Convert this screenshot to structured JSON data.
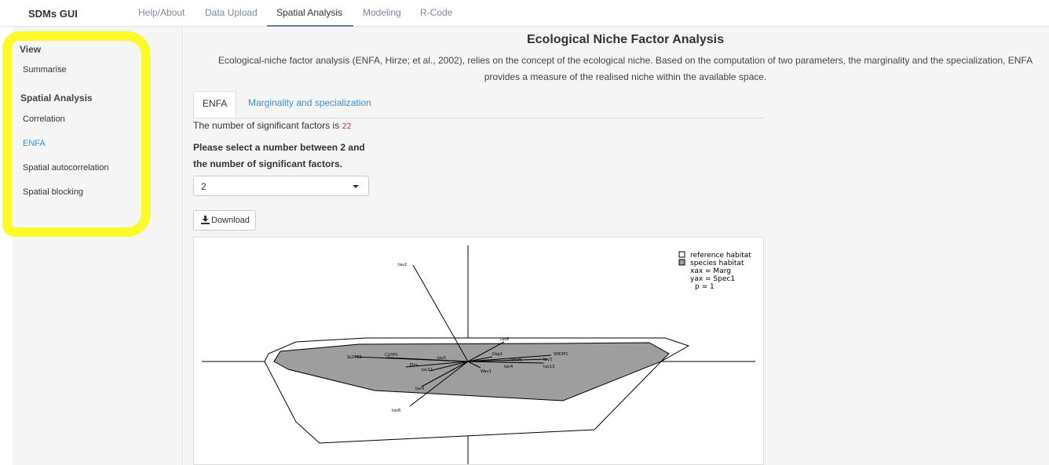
{
  "app": {
    "title": "SDMs GUI"
  },
  "nav": {
    "tabs": [
      {
        "label": "Help/About"
      },
      {
        "label": "Data Upload"
      },
      {
        "label": "Spatial Analysis"
      },
      {
        "label": "Modeling"
      },
      {
        "label": "R-Code"
      }
    ],
    "active_tab": "Spatial Analysis"
  },
  "sidebar": {
    "view_heading": "View",
    "summarise": "Summarise",
    "spatial_heading": "Spatial Analysis",
    "items": [
      {
        "label": "Correlation"
      },
      {
        "label": "ENFA"
      },
      {
        "label": "Spatial autocorrelation"
      },
      {
        "label": "Spatial blocking"
      }
    ],
    "active_item": "ENFA",
    "highlight_color": "#fbfb2a"
  },
  "main": {
    "title": "Ecological Niche Factor Analysis",
    "description": "Ecological-niche factor analysis (ENFA, Hirze; et al., 2002), relies on the concept of the ecological niche. Based on the computation of two parameters, the marginality and the specialization, ENFA provides a measure of the realised niche within the available space.",
    "tabs": [
      {
        "label": "ENFA"
      },
      {
        "label": "Marginality and specialization"
      }
    ],
    "sig_text": "The number of significant factors is",
    "sig_value": "22",
    "select_label": "Please select a number between 2 and the number of significant factors.",
    "select_value": "2",
    "download_label": "Download",
    "download_icon": "download-icon"
  },
  "plot": {
    "legend": {
      "reference": "reference habitat",
      "species": "species habitat",
      "xax": "xax = Marg",
      "yax": "yax = Spec1",
      "p": "p = 1"
    },
    "var_labels": [
      "tav2",
      "tav8",
      "SLOPE1",
      "CLIYP1",
      "Elev",
      "tav11",
      "tav5",
      "tav3",
      "Dep1",
      "tav4",
      "Wav1",
      "SHDIP1",
      "tav13",
      "tav16",
      "tav9",
      "tav6"
    ],
    "colors": {
      "species_fill": "#9e9e9e",
      "axis": "#000000"
    }
  }
}
